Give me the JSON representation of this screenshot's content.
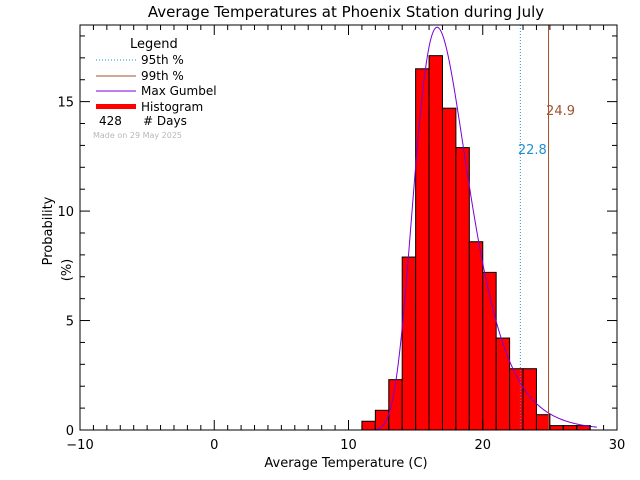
{
  "chart_data": {
    "type": "bar",
    "title": "Average Temperatures at Phoenix Station during July",
    "xlabel": "Average Temperature (C)",
    "ylabel_line1": "Probability",
    "ylabel_line2": "(%)",
    "xlim": [
      -10,
      30
    ],
    "ylim": [
      0,
      18.5
    ],
    "x_ticks": [
      -10,
      0,
      10,
      20,
      30
    ],
    "y_ticks": [
      0,
      5,
      10,
      15
    ],
    "x_minor_step": 1,
    "y_minor_step": 1,
    "grid": false,
    "legend": {
      "title": "Legend",
      "placement": "top-left",
      "entries": [
        {
          "label": "95th %",
          "style": "dotted",
          "color": "#1E90D0"
        },
        {
          "label": "99th %",
          "style": "solid",
          "color": "#A0522D"
        },
        {
          "label": "Max Gumbel",
          "style": "solid",
          "color": "#7B00D4"
        },
        {
          "label": "Histogram",
          "style": "thick",
          "color": "#FF0000"
        }
      ],
      "days_count": "428",
      "days_label": "# Days",
      "made_on": "Made on 29 May 2025"
    },
    "histogram": {
      "color": "#FF0000",
      "bin_width": 1,
      "bins": [
        {
          "x0": 11,
          "p": 0.4
        },
        {
          "x0": 12,
          "p": 0.9
        },
        {
          "x0": 13,
          "p": 2.3
        },
        {
          "x0": 14,
          "p": 7.9
        },
        {
          "x0": 15,
          "p": 16.5
        },
        {
          "x0": 16,
          "p": 17.1
        },
        {
          "x0": 17,
          "p": 14.7
        },
        {
          "x0": 18,
          "p": 12.9
        },
        {
          "x0": 19,
          "p": 8.6
        },
        {
          "x0": 20,
          "p": 7.2
        },
        {
          "x0": 21,
          "p": 4.2
        },
        {
          "x0": 22,
          "p": 2.8
        },
        {
          "x0": 23,
          "p": 2.8
        },
        {
          "x0": 24,
          "p": 0.7
        },
        {
          "x0": 25,
          "p": 0.2
        },
        {
          "x0": 26,
          "p": 0.2
        },
        {
          "x0": 27,
          "p": 0.2
        }
      ]
    },
    "gumbel": {
      "color": "#7B00D4",
      "mode": 16.6,
      "scale": 2.0,
      "peak": 18.4,
      "x_range": [
        12.0,
        28.5
      ]
    },
    "percentile_95": {
      "value": 22.8,
      "label": "22.8",
      "color": "#1E90D0"
    },
    "percentile_99": {
      "value": 24.9,
      "label": "24.9",
      "color": "#A0522D"
    }
  }
}
